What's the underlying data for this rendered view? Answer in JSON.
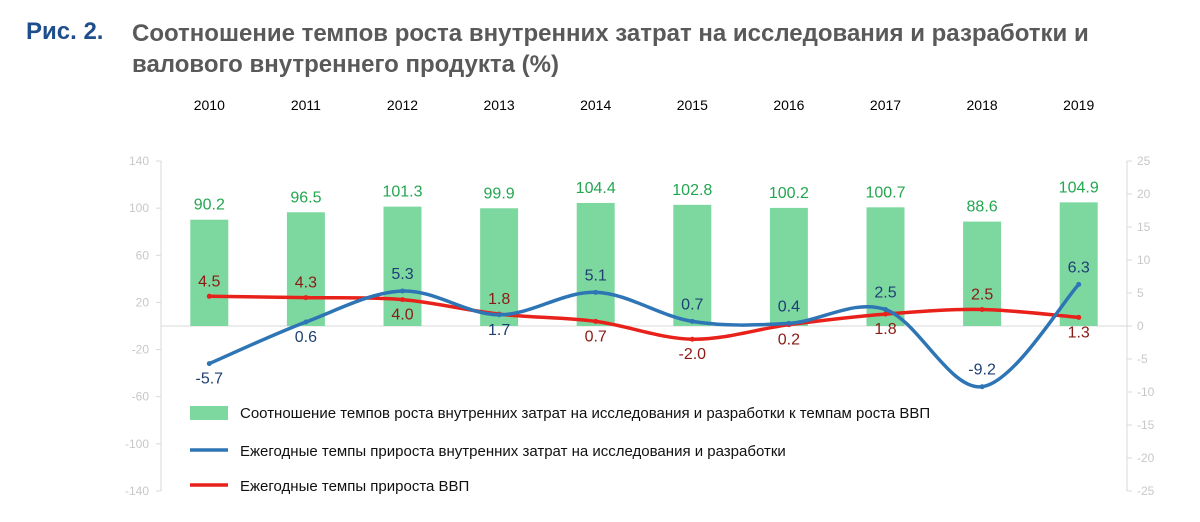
{
  "figure": {
    "label": "Рис. 2.",
    "title": "Соотношение темпов роста внутренних затрат на исследования и разработки и валового внутреннего продукта (%)"
  },
  "chart_data": {
    "type": "bar",
    "categories": [
      "2010",
      "2011",
      "2012",
      "2013",
      "2014",
      "2015",
      "2016",
      "2017",
      "2018",
      "2019"
    ],
    "series": [
      {
        "name": "Соотношение темпов роста внутренних затрат на  исследования и разработки к темпам роста ВВП",
        "type": "bar",
        "axis": "left",
        "color": "#7dd8a0",
        "values": [
          90.2,
          96.5,
          101.3,
          99.9,
          104.4,
          102.8,
          100.2,
          100.7,
          88.6,
          104.9
        ]
      },
      {
        "name": "Ежегодные темпы прироста внутренних затрат на исследования и разработки",
        "type": "line",
        "smooth": true,
        "axis": "right",
        "color": "#2e75b6",
        "values": [
          -5.7,
          0.6,
          5.3,
          1.7,
          5.1,
          0.7,
          0.4,
          2.5,
          -9.2,
          6.3
        ]
      },
      {
        "name": "Ежегодные темпы прироста ВВП",
        "type": "line",
        "smooth": true,
        "axis": "right",
        "color": "#e8221b",
        "values": [
          4.5,
          4.3,
          4.0,
          1.8,
          0.7,
          -2.0,
          0.2,
          1.8,
          2.5,
          1.3
        ]
      }
    ],
    "y_left": {
      "ylim": [
        -140,
        140
      ],
      "ticks": [
        140,
        100,
        60,
        20,
        -20,
        -60,
        -100,
        -140
      ]
    },
    "y_right": {
      "ylim": [
        -25,
        25
      ],
      "ticks": [
        25,
        20,
        15,
        10,
        5,
        0,
        -5,
        -10,
        -15,
        -20,
        -25
      ]
    },
    "data_labels": {
      "ratio": [
        "90.2",
        "96.5",
        "101.3",
        "99.9",
        "104.4",
        "102.8",
        "100.2",
        "100.7",
        "88.6",
        "104.9"
      ],
      "rd": [
        "-5.7",
        "0.6",
        "5.3",
        "1.7",
        "5.1",
        "0.7",
        "0.4",
        "2.5",
        "-9.2",
        "6.3"
      ],
      "gdp": [
        "4.5",
        "4.3",
        "4.0",
        "1.8",
        "0.7",
        "-2.0",
        "0.2",
        "1.8",
        "2.5",
        "1.3"
      ]
    },
    "category_axis_position": "top",
    "legend_position": "bottom",
    "grid": false
  }
}
